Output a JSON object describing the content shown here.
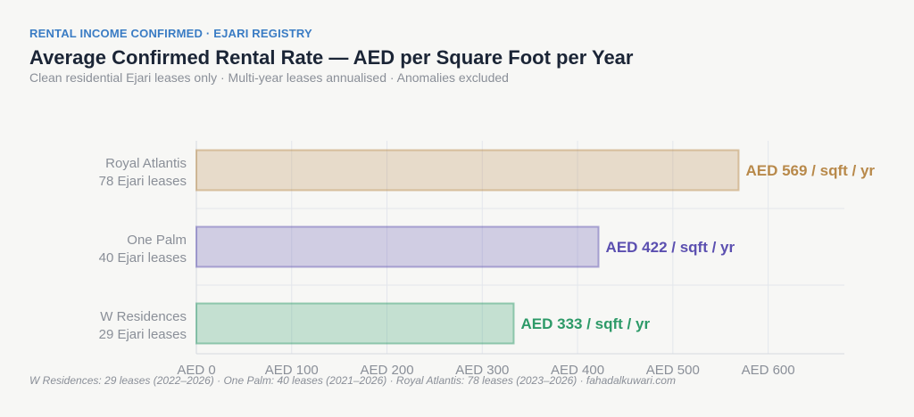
{
  "header": {
    "eyebrow": "RENTAL INCOME CONFIRMED · EJARI REGISTRY",
    "title": "Average Confirmed Rental Rate — AED per Square Foot per Year",
    "subtitle": "Clean residential Ejari leases only · Multi-year leases annualised · Anomalies excluded"
  },
  "chart_data": {
    "type": "bar",
    "orientation": "horizontal",
    "categories": [
      "Royal Atlantis",
      "One Palm",
      "W Residences"
    ],
    "category_sublabels": [
      "78 Ejari leases",
      "40 Ejari leases",
      "29 Ejari leases"
    ],
    "values": [
      569,
      422,
      333
    ],
    "value_labels": [
      "AED 569 / sqft / yr",
      "AED 422 / sqft / yr",
      "AED 333 / sqft / yr"
    ],
    "colors": [
      "#b8894a",
      "#5b4fb0",
      "#2d9a68"
    ],
    "xlim": [
      0,
      680
    ],
    "xticks": [
      0,
      100,
      200,
      300,
      400,
      500,
      600
    ],
    "xtick_labels": [
      "AED 0",
      "AED 100",
      "AED 200",
      "AED 300",
      "AED 400",
      "AED 500",
      "AED 600"
    ],
    "grid": true
  },
  "footnote": "W Residences: 29 leases (2022–2026)  ·  One Palm: 40 leases (2021–2026)  ·  Royal Atlantis: 78 leases (2023–2026)  ·  fahadalkuwari.com"
}
